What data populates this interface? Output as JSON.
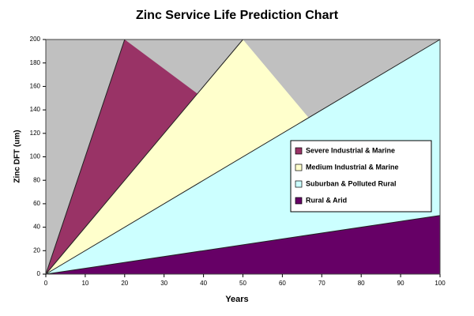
{
  "chart_data": {
    "type": "area",
    "title": "Zinc Service Life Prediction Chart",
    "x_label": "Years",
    "y_label": "Zinc DFT (um)",
    "xlim": [
      0,
      100
    ],
    "ylim": [
      0,
      200
    ],
    "xticks": [
      0,
      10,
      20,
      30,
      40,
      50,
      60,
      70,
      80,
      90,
      100
    ],
    "yticks": [
      0,
      20,
      40,
      60,
      80,
      100,
      120,
      140,
      160,
      180,
      200
    ],
    "plot_background": "#c0c0c0",
    "legend": "right",
    "series": [
      {
        "name": "Severe Industrial & Marine",
        "color": "#993366",
        "x": [
          0,
          20
        ],
        "values": [
          0,
          200
        ]
      },
      {
        "name": "Medium Industrial & Marine",
        "color": "#ffffcc",
        "x": [
          0,
          50
        ],
        "values": [
          0,
          200
        ]
      },
      {
        "name": "Suburban & Polluted Rural",
        "color": "#ccffff",
        "x": [
          0,
          100
        ],
        "values": [
          0,
          200
        ]
      },
      {
        "name": "Rural & Arid",
        "color": "#660066",
        "x": [
          0,
          100
        ],
        "values": [
          0,
          50
        ]
      }
    ]
  }
}
